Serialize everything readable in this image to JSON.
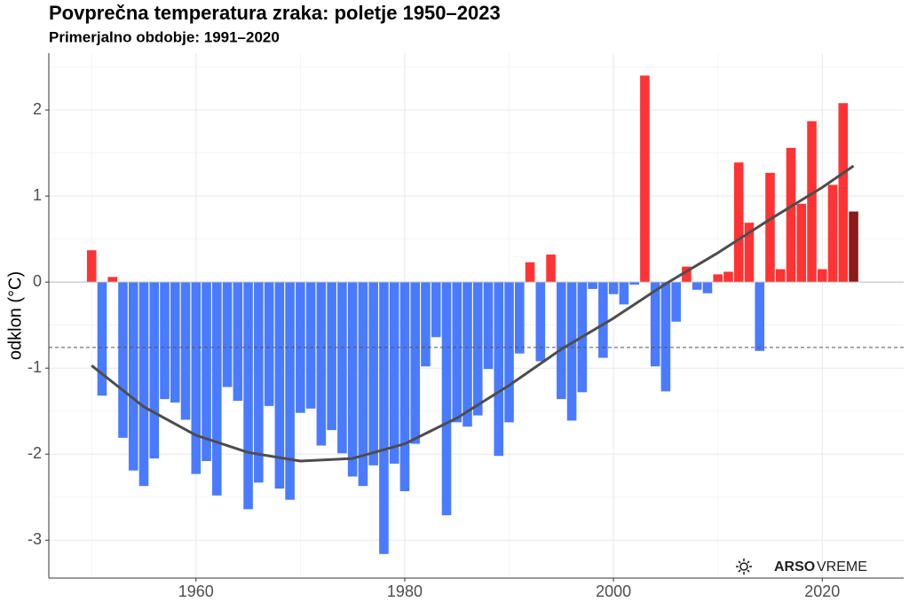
{
  "chart_data": {
    "type": "bar",
    "title": "Povprečna temperatura zraka: poletje 1950–2023",
    "subtitle": "Primerjalno obdobje: 1991–2020",
    "y_label": "odklon (°C)",
    "watermark": {
      "bold": "ARSO",
      "text": "VREME"
    },
    "x": [
      1950,
      1951,
      1952,
      1953,
      1954,
      1955,
      1956,
      1957,
      1958,
      1959,
      1960,
      1961,
      1962,
      1963,
      1964,
      1965,
      1966,
      1967,
      1968,
      1969,
      1970,
      1971,
      1972,
      1973,
      1974,
      1975,
      1976,
      1977,
      1978,
      1979,
      1980,
      1981,
      1982,
      1983,
      1984,
      1985,
      1986,
      1987,
      1988,
      1989,
      1990,
      1991,
      1992,
      1993,
      1994,
      1995,
      1996,
      1997,
      1998,
      1999,
      2000,
      2001,
      2002,
      2003,
      2004,
      2005,
      2006,
      2007,
      2008,
      2009,
      2010,
      2011,
      2012,
      2013,
      2014,
      2015,
      2016,
      2017,
      2018,
      2019,
      2020,
      2021,
      2022,
      2023
    ],
    "values": [
      0.37,
      -1.32,
      0.06,
      -1.81,
      -2.19,
      -2.37,
      -2.05,
      -1.36,
      -1.4,
      -1.6,
      -2.23,
      -2.08,
      -2.48,
      -1.22,
      -1.38,
      -2.64,
      -2.33,
      -1.44,
      -2.4,
      -2.53,
      -1.52,
      -1.47,
      -1.9,
      -1.72,
      -1.99,
      -2.26,
      -2.37,
      -2.13,
      -3.16,
      -2.11,
      -2.43,
      -1.88,
      -0.98,
      -0.64,
      -2.71,
      -1.63,
      -1.68,
      -1.55,
      -1.01,
      -2.02,
      -1.63,
      -0.83,
      0.23,
      -0.92,
      0.32,
      -1.36,
      -1.61,
      -1.28,
      -0.08,
      -0.88,
      -0.14,
      -0.26,
      -0.03,
      2.4,
      -0.98,
      -1.27,
      -0.46,
      0.18,
      -0.09,
      -0.13,
      0.09,
      0.12,
      1.39,
      0.69,
      -0.8,
      1.27,
      0.15,
      1.56,
      0.91,
      1.87,
      0.15,
      1.13,
      2.08,
      0.82
    ],
    "positive_color": "#ff3333",
    "negative_color": "#4a7bff",
    "last_color": "#8b1a1a",
    "trend": {
      "color": "#4d4d4d",
      "x": [
        1950,
        1955,
        1960,
        1965,
        1970,
        1975,
        1980,
        1985,
        1990,
        1995,
        2000,
        2005,
        2010,
        2015,
        2020,
        2023
      ],
      "values": [
        -0.97,
        -1.45,
        -1.78,
        -1.98,
        -2.08,
        -2.05,
        -1.88,
        -1.58,
        -1.2,
        -0.78,
        -0.42,
        -0.02,
        0.34,
        0.73,
        1.1,
        1.35
      ]
    },
    "hline": -0.76,
    "xlim": [
      1945.9,
      2027.8
    ],
    "ylim": [
      -3.44,
      2.66
    ],
    "xticks": [
      1960,
      1980,
      2000,
      2020
    ],
    "yticks": [
      -3,
      -2,
      -1,
      0,
      1,
      2
    ],
    "x_minor_ticks": [
      1950,
      1970,
      1990,
      2010
    ],
    "y_minor_ticks": [
      -2.5,
      -1.5,
      -0.5,
      0.5,
      1.5,
      2.5
    ],
    "grid": true
  }
}
